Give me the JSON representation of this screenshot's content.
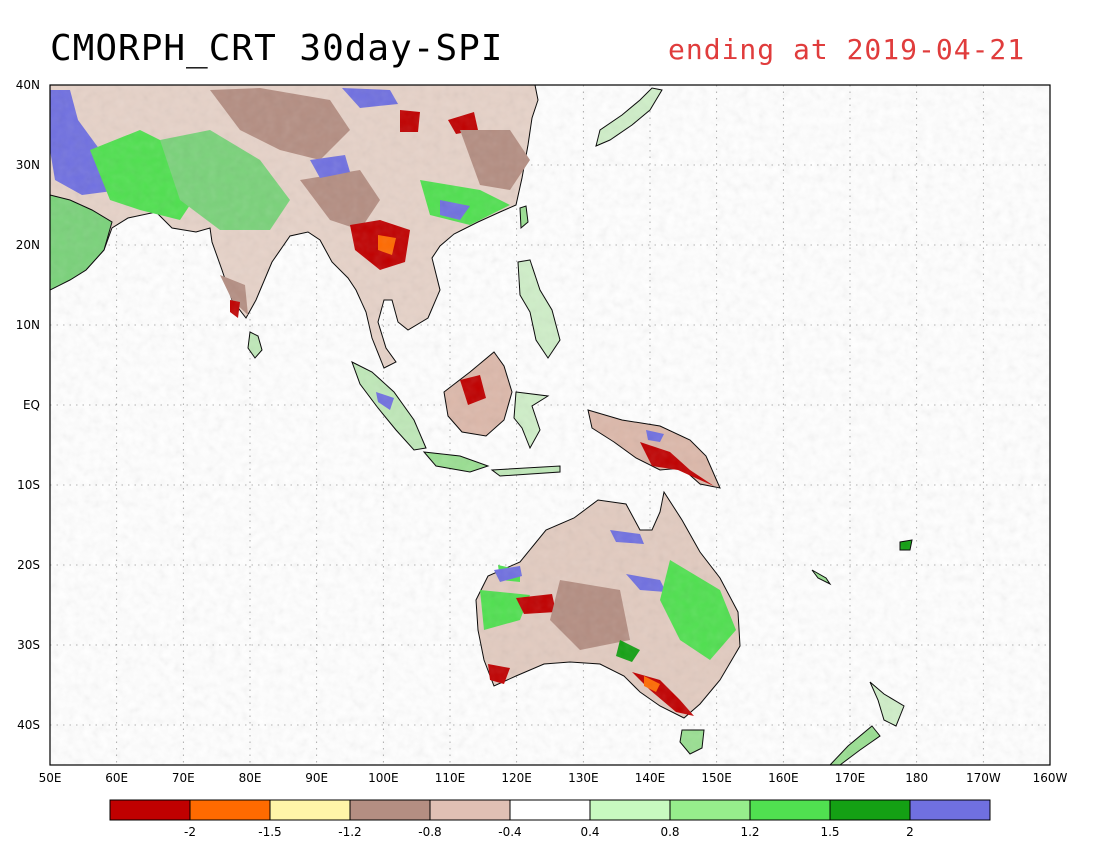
{
  "title": "CMORPH_CRT 30day-SPI",
  "date_label": "ending at 2019-04-21",
  "lat_labels": [
    "40N",
    "30N",
    "20N",
    "10N",
    "EQ",
    "10S",
    "20S",
    "30S",
    "40S"
  ],
  "lon_labels": [
    "50E",
    "60E",
    "70E",
    "80E",
    "90E",
    "100E",
    "110E",
    "120E",
    "130E",
    "140E",
    "150E",
    "160E",
    "170E",
    "180",
    "170W",
    "160W"
  ],
  "colorbar": {
    "colors": [
      "#c00000",
      "#ff6a00",
      "#fff5a8",
      "#b48e82",
      "#e0c0b4",
      "#ffffff",
      "#c8fac0",
      "#96ee8c",
      "#50e050",
      "#14a014",
      "#7070e0"
    ],
    "labels": [
      "-2",
      "-1.5",
      "-1.2",
      "-0.8",
      "-0.4",
      "0.4",
      "0.8",
      "1.2",
      "1.5",
      "2"
    ]
  }
}
